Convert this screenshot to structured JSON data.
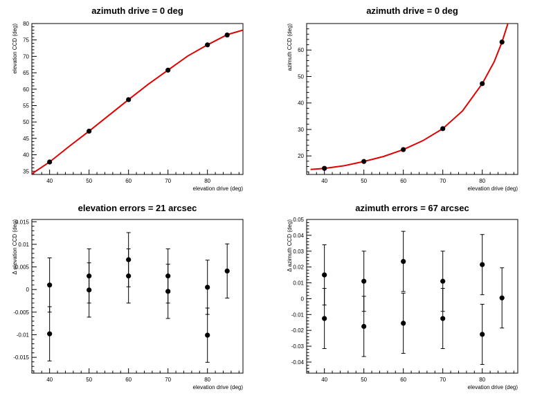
{
  "chart_data": [
    {
      "type": "scatter",
      "title": "azimuth drive = 0 deg",
      "xlabel": "elevation drive (deg)",
      "ylabel": "elevation CCD (deg)",
      "xlim": [
        35.5,
        89
      ],
      "ylim": [
        34,
        80
      ],
      "xticks": [
        40,
        50,
        60,
        70,
        80
      ],
      "yticks": [
        35,
        40,
        45,
        50,
        55,
        60,
        65,
        70,
        75,
        80
      ],
      "grid": false,
      "series": [
        {
          "points": [
            [
              40,
              37.8
            ],
            [
              50,
              47.2
            ],
            [
              60,
              56.8
            ],
            [
              70,
              65.8
            ],
            [
              80,
              73.5
            ],
            [
              85,
              76.5
            ]
          ]
        }
      ],
      "fit": {
        "color": "#e00000",
        "x": [
          35.5,
          40,
          45,
          50,
          55,
          60,
          65,
          70,
          75,
          80,
          85,
          89
        ],
        "y": [
          34.2,
          37.8,
          42.6,
          47.2,
          52.0,
          56.8,
          61.5,
          65.8,
          70.1,
          73.5,
          76.6,
          78.0
        ]
      }
    },
    {
      "type": "scatter",
      "title": "azimuth drive = 0 deg",
      "xlabel": "elevation drive (deg)",
      "ylabel": "azimuth CCD (deg)",
      "xlim": [
        35.5,
        89
      ],
      "ylim": [
        13,
        70
      ],
      "xticks": [
        40,
        50,
        60,
        70,
        80
      ],
      "yticks": [
        20,
        30,
        40,
        50,
        60
      ],
      "grid": false,
      "series": [
        {
          "points": [
            [
              40,
              15.3
            ],
            [
              50,
              17.9
            ],
            [
              60,
              22.4
            ],
            [
              70,
              30.3
            ],
            [
              80,
              47.3
            ],
            [
              85,
              63.0
            ]
          ]
        }
      ],
      "fit": {
        "color": "#e00000",
        "x": [
          36.5,
          40,
          45,
          50,
          55,
          60,
          65,
          70,
          75,
          80,
          83,
          85,
          86.5
        ],
        "y": [
          14.9,
          15.3,
          16.3,
          17.9,
          19.8,
          22.4,
          25.8,
          30.3,
          37.0,
          47.3,
          55.5,
          63.0,
          70.0
        ]
      }
    },
    {
      "type": "scatter",
      "title": "elevation errors = 21 arcsec",
      "xlabel": "elevation drive (deg)",
      "ylabel": "Δ elevation CCD (deg)",
      "xlim": [
        35.5,
        89
      ],
      "ylim": [
        -0.0185,
        0.0155
      ],
      "xticks": [
        40,
        50,
        60,
        70,
        80
      ],
      "yticks": [
        -0.015,
        -0.01,
        -0.005,
        0,
        0.005,
        0.01,
        0.015
      ],
      "ytick_labels": [
        "-0.015",
        "-0.01",
        "-0.005",
        "0",
        "0.005",
        "0.01",
        "0.015"
      ],
      "grid": false,
      "series": [
        {
          "points": [
            [
              40,
              0.001
            ],
            [
              40,
              -0.0098
            ],
            [
              50,
              0.003
            ],
            [
              50,
              -0.0001
            ],
            [
              60,
              0.0066
            ],
            [
              60,
              0.003
            ],
            [
              70,
              0.003
            ],
            [
              70,
              -0.0004
            ],
            [
              80,
              0.0005
            ],
            [
              80,
              -0.0101
            ],
            [
              85,
              0.0041
            ]
          ],
          "yerr": 0.006
        }
      ]
    },
    {
      "type": "scatter",
      "title": "azimuth errors = 67 arcsec",
      "xlabel": "elevation drive (deg)",
      "ylabel": "Δ azimuth CCD (deg)",
      "xlim": [
        35.5,
        89
      ],
      "ylim": [
        -0.047,
        0.05
      ],
      "xticks": [
        40,
        50,
        60,
        70,
        80
      ],
      "yticks": [
        -0.04,
        -0.03,
        -0.02,
        -0.01,
        0,
        0.01,
        0.02,
        0.03,
        0.04,
        0.05
      ],
      "ytick_labels": [
        "-0.04",
        "-0.03",
        "-0.02",
        "-0.01",
        "0",
        "0.01",
        "0.02",
        "0.03",
        "0.04",
        "0.05"
      ],
      "grid": false,
      "series": [
        {
          "points": [
            [
              40,
              0.015
            ],
            [
              40,
              -0.0125
            ],
            [
              50,
              0.011
            ],
            [
              50,
              -0.0175
            ],
            [
              60,
              0.0235
            ],
            [
              60,
              -0.0155
            ],
            [
              70,
              0.011
            ],
            [
              70,
              -0.0125
            ],
            [
              80,
              0.0215
            ],
            [
              80,
              -0.0225
            ],
            [
              85,
              0.0005
            ]
          ],
          "yerr": 0.019
        }
      ]
    }
  ]
}
